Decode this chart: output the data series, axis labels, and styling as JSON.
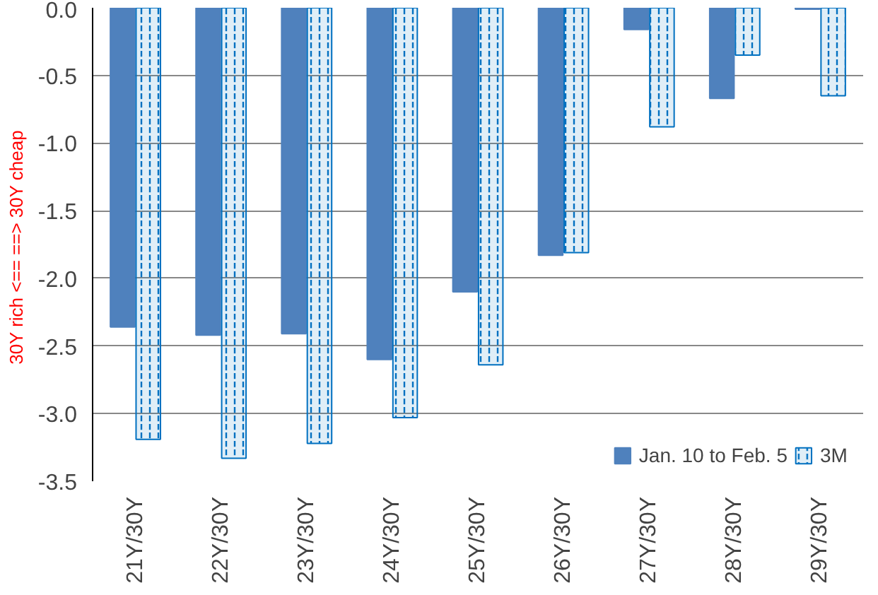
{
  "chart_data": {
    "type": "bar",
    "ylabel": "30Y  rich <== ==> 30Y cheap",
    "categories": [
      "21Y/30Y",
      "22Y/30Y",
      "23Y/30Y",
      "24Y/30Y",
      "25Y/30Y",
      "26Y/30Y",
      "27Y/30Y",
      "28Y/30Y",
      "29Y/30Y"
    ],
    "series": [
      {
        "name": "Jan. 10 to Feb. 5",
        "color": "#4f81bd",
        "values": [
          -2.36,
          -2.42,
          -2.41,
          -2.6,
          -2.1,
          -1.83,
          -0.16,
          -0.67,
          -0.01
        ]
      },
      {
        "name": "3M",
        "color": "#0070c0",
        "values": [
          -3.19,
          -3.33,
          -3.22,
          -3.03,
          -2.64,
          -1.81,
          -0.88,
          -0.35,
          -0.65
        ]
      }
    ],
    "ylim": [
      -3.5,
      0
    ],
    "yticks": [
      {
        "value": -3.5,
        "label": "-3.5"
      },
      {
        "value": -3,
        "label": "-3.0"
      },
      {
        "value": -2.5,
        "label": "-2.5"
      },
      {
        "value": -2,
        "label": "-2.0"
      },
      {
        "value": -1.5,
        "label": "-1.5"
      },
      {
        "value": -1,
        "label": "-1.0"
      },
      {
        "value": -0.5,
        "label": "-0.5"
      },
      {
        "value": 0,
        "label": "0.0"
      }
    ],
    "grid": "y",
    "legend": "bottom right"
  }
}
